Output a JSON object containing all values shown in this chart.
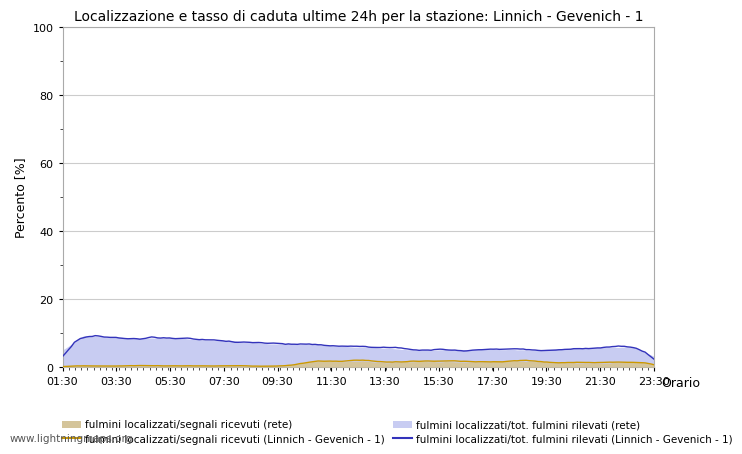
{
  "title": "Localizzazione e tasso di caduta ultime 24h per la stazione: Linnich - Gevenich - 1",
  "ylabel": "Percento [%]",
  "xlabel_right": "Orario",
  "ylim": [
    0,
    100
  ],
  "yticks": [
    0,
    20,
    40,
    60,
    80,
    100
  ],
  "xtick_labels": [
    "01:30",
    "03:30",
    "05:30",
    "07:30",
    "09:30",
    "11:30",
    "13:30",
    "15:30",
    "17:30",
    "19:30",
    "21:30",
    "23:30"
  ],
  "watermark": "www.lightningmaps.org",
  "background_color": "#ffffff",
  "plot_bg_color": "#ffffff",
  "grid_color": "#cccccc",
  "fill_rete_color": "#d4c49a",
  "fill_blue_color": "#c8ccf2",
  "line_orange_color": "#cc9900",
  "line_blue_color": "#3333bb",
  "legend_labels": [
    "fulmini localizzati/segnali ricevuti (rete)",
    "fulmini localizzati/segnali ricevuti (Linnich - Gevenich - 1)",
    "fulmini localizzati/tot. fulmini rilevati (rete)",
    "fulmini localizzati/tot. fulmini rilevati (Linnich - Gevenich - 1)"
  ]
}
